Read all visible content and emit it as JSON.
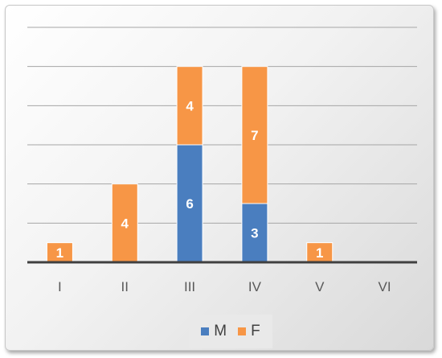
{
  "chart_data": {
    "type": "bar",
    "stacked": true,
    "categories": [
      "I",
      "II",
      "III",
      "IV",
      "V",
      "VI"
    ],
    "series": [
      {
        "name": "M",
        "color": "#4a7ebf",
        "values": [
          0,
          0,
          6,
          3,
          0,
          0
        ]
      },
      {
        "name": "F",
        "color": "#f79646",
        "values": [
          1,
          4,
          4,
          7,
          1,
          0
        ]
      }
    ],
    "ylim": [
      0,
      12
    ],
    "grid": true,
    "legend_position": "bottom",
    "data_labels": true
  }
}
